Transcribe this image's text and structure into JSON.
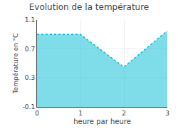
{
  "chart_data": {
    "type": "area",
    "title": "Evolution de la température",
    "xlabel": "heure par heure",
    "ylabel": "Température en °C",
    "x": [
      0,
      1,
      2,
      3
    ],
    "values": [
      0.9,
      0.9,
      0.45,
      0.95
    ],
    "color": "#00bcd4",
    "line_style": "dotted",
    "xlim": [
      0,
      3
    ],
    "ylim": [
      -0.1,
      1.1
    ],
    "xticks": [
      0,
      1,
      2,
      3
    ],
    "yticks": [
      -0.1,
      0.3,
      0.7,
      1.1
    ],
    "grid": true
  }
}
